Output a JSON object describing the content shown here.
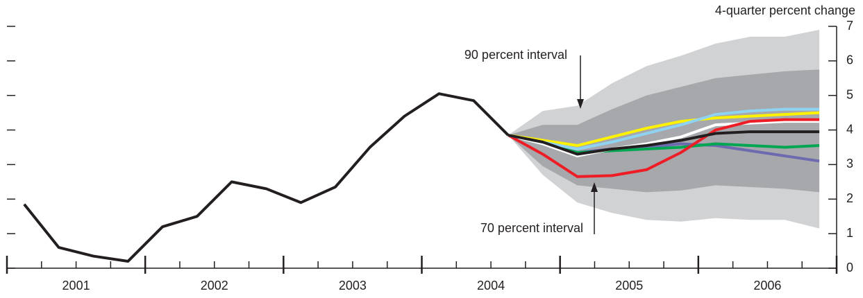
{
  "chart_data": {
    "type": "line",
    "ylabel": "4-quarter percent change",
    "ylim": [
      0,
      7
    ],
    "yticks": [
      0,
      1,
      2,
      3,
      4,
      5,
      6,
      7
    ],
    "xlim": [
      2001,
      2007
    ],
    "x_major_ticks": [
      2001,
      2002,
      2003,
      2004,
      2005,
      2006,
      2007
    ],
    "xticks": [
      {
        "value": 2001.5,
        "label": "2001"
      },
      {
        "value": 2002.5,
        "label": "2002"
      },
      {
        "value": 2003.5,
        "label": "2003"
      },
      {
        "value": 2004.5,
        "label": "2004"
      },
      {
        "value": 2005.5,
        "label": "2005"
      },
      {
        "value": 2006.5,
        "label": "2006"
      }
    ],
    "history": {
      "color": "#231f20",
      "x": [
        2001.125,
        2001.375,
        2001.625,
        2001.875,
        2002.125,
        2002.375,
        2002.625,
        2002.875,
        2003.125,
        2003.375,
        2003.625,
        2003.875,
        2004.125,
        2004.375,
        2004.625
      ],
      "values": [
        1.85,
        0.6,
        0.35,
        0.2,
        1.2,
        1.5,
        2.5,
        2.3,
        1.9,
        2.35,
        3.5,
        4.4,
        5.05,
        4.85,
        3.85
      ]
    },
    "forecast_x": [
      2004.625,
      2004.875,
      2005.125,
      2005.375,
      2005.625,
      2005.875,
      2006.125,
      2006.375,
      2006.625,
      2006.875
    ],
    "bands": [
      {
        "label": "90 percent interval",
        "color": "#d1d2d4",
        "upper": [
          3.85,
          4.55,
          4.7,
          5.35,
          5.85,
          6.15,
          6.5,
          6.7,
          6.7,
          6.9
        ],
        "lower": [
          3.85,
          2.7,
          1.9,
          1.6,
          1.4,
          1.35,
          1.45,
          1.4,
          1.4,
          1.15
        ]
      },
      {
        "label": "70 percent interval",
        "color": "#a6a8ab",
        "upper": [
          3.85,
          4.15,
          4.15,
          4.6,
          5.0,
          5.25,
          5.5,
          5.6,
          5.7,
          5.75
        ],
        "lower": [
          3.85,
          2.95,
          2.4,
          2.3,
          2.2,
          2.25,
          2.4,
          2.35,
          2.3,
          2.2
        ]
      }
    ],
    "series": [
      {
        "color": "#6d6ab0",
        "values": [
          3.85,
          3.6,
          3.35,
          3.45,
          3.5,
          3.6,
          3.55,
          3.4,
          3.25,
          3.1
        ]
      },
      {
        "color": "#00a651",
        "values": [
          3.85,
          3.6,
          3.35,
          3.4,
          3.45,
          3.5,
          3.6,
          3.55,
          3.5,
          3.55
        ]
      },
      {
        "color": "#ffffff",
        "values": [
          3.85,
          3.6,
          3.25,
          3.45,
          3.6,
          3.8,
          4.15,
          4.2,
          4.25,
          4.25
        ]
      },
      {
        "color": "#ee1c25",
        "values": [
          3.85,
          3.3,
          2.65,
          2.68,
          2.85,
          3.35,
          4.0,
          4.25,
          4.3,
          4.3
        ]
      },
      {
        "color": "#fff200",
        "values": [
          3.85,
          3.7,
          3.55,
          3.8,
          4.05,
          4.25,
          4.35,
          4.4,
          4.45,
          4.5
        ]
      },
      {
        "color": "#8fd3f3",
        "values": [
          3.85,
          3.65,
          3.45,
          3.65,
          3.9,
          4.15,
          4.45,
          4.55,
          4.6,
          4.6
        ]
      },
      {
        "color": "#231f20",
        "values": [
          3.85,
          3.65,
          3.3,
          3.45,
          3.55,
          3.7,
          3.9,
          3.95,
          3.95,
          3.95
        ]
      }
    ]
  }
}
